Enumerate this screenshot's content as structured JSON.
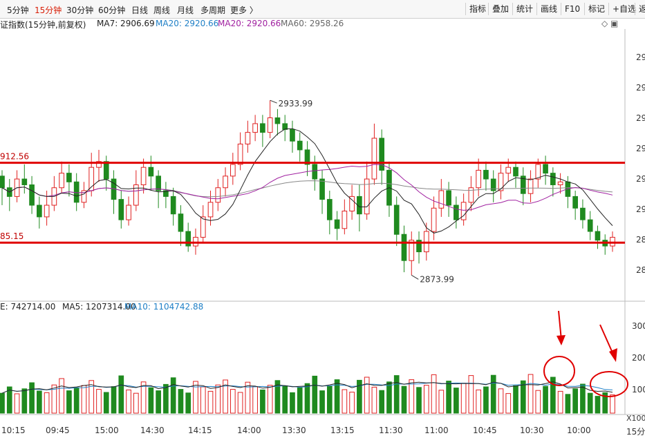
{
  "toolbar": {
    "periods": [
      "5分钟",
      "15分钟",
      "30分钟",
      "60分钟",
      "日线",
      "周线",
      "月线",
      "多周期",
      "更多 〉"
    ],
    "active_period": "15分钟",
    "right_buttons": [
      "指标",
      "叠加",
      "统计",
      "画线",
      "F10",
      "标记",
      "+自选",
      "返"
    ]
  },
  "info": {
    "title": "证指数(15分钟,前复权)",
    "ma7": "MA7: 2906.69",
    "ma20a": "MA20: 2920.66",
    "ma20b": "MA20: 2920.66",
    "ma60": "MA60: 2958.26",
    "corner_icons": "◇  ▣"
  },
  "price_axis": [
    "29",
    "29",
    "29",
    "29",
    "29",
    "29",
    "28",
    "28"
  ],
  "annotations": {
    "high": "2933.99",
    "low": "2873.99",
    "upper_line": "912.56",
    "lower_line": "85.15"
  },
  "volume_info": {
    "vol": "E: 742714.00",
    "ma5": "MA5: 1207314.00",
    "ma10": "MA10: 1104742.88"
  },
  "volume_axis": [
    "300",
    "200",
    "100",
    "X100"
  ],
  "time_axis": [
    "10:15",
    "09:45",
    "15:00",
    "14:30",
    "14:15",
    "14:00",
    "13:30",
    "13:15",
    "11:30",
    "11:00",
    "10:45",
    "10:30",
    "10:00"
  ],
  "corner_label": "15分",
  "colors": {
    "up": "#e02020",
    "down": "#1f8a1f",
    "ma7": "#222222",
    "ma20a": "#1e7fc6",
    "ma20b": "#a020a0",
    "ma60": "#888888",
    "hline": "#e00000"
  },
  "chart_data": {
    "type": "candlestick",
    "ylim": [
      2866,
      2958
    ],
    "high_label": 2933.99,
    "low_label": 2873.99,
    "hlines": [
      2912.56,
      2885.15
    ],
    "candles": [
      [
        2908,
        2904,
        2910,
        2898
      ],
      [
        2904,
        2901,
        2907,
        2896
      ],
      [
        2901,
        2907,
        2910,
        2899
      ],
      [
        2907,
        2905,
        2912,
        2902
      ],
      [
        2905,
        2898,
        2908,
        2895
      ],
      [
        2898,
        2894,
        2901,
        2890
      ],
      [
        2894,
        2898,
        2903,
        2891
      ],
      [
        2898,
        2904,
        2908,
        2896
      ],
      [
        2904,
        2909,
        2913,
        2902
      ],
      [
        2909,
        2906,
        2912,
        2901
      ],
      [
        2906,
        2899,
        2909,
        2896
      ],
      [
        2899,
        2903,
        2906,
        2897
      ],
      [
        2903,
        2911,
        2916,
        2901
      ],
      [
        2911,
        2913,
        2917,
        2906
      ],
      [
        2913,
        2907,
        2915,
        2903
      ],
      [
        2907,
        2900,
        2910,
        2895
      ],
      [
        2900,
        2893,
        2903,
        2890
      ],
      [
        2893,
        2898,
        2901,
        2891
      ],
      [
        2898,
        2905,
        2910,
        2896
      ],
      [
        2905,
        2911,
        2914,
        2902
      ],
      [
        2911,
        2908,
        2915,
        2903
      ],
      [
        2908,
        2903,
        2910,
        2897
      ],
      [
        2903,
        2901,
        2906,
        2897
      ],
      [
        2901,
        2895,
        2904,
        2891
      ],
      [
        2895,
        2889,
        2898,
        2884
      ],
      [
        2889,
        2884,
        2892,
        2882
      ],
      [
        2884,
        2887,
        2890,
        2881
      ],
      [
        2887,
        2894,
        2898,
        2885
      ],
      [
        2894,
        2899,
        2903,
        2891
      ],
      [
        2899,
        2904,
        2907,
        2896
      ],
      [
        2904,
        2908,
        2911,
        2901
      ],
      [
        2908,
        2912,
        2916,
        2905
      ],
      [
        2912,
        2919,
        2923,
        2910
      ],
      [
        2919,
        2923,
        2927,
        2916
      ],
      [
        2923,
        2926,
        2929,
        2920
      ],
      [
        2926,
        2923,
        2929,
        2918
      ],
      [
        2923,
        2928,
        2934,
        2921
      ],
      [
        2928,
        2926,
        2931,
        2922
      ],
      [
        2926,
        2924,
        2929,
        2920
      ],
      [
        2924,
        2920,
        2927,
        2916
      ],
      [
        2920,
        2917,
        2923,
        2913
      ],
      [
        2917,
        2912,
        2920,
        2908
      ],
      [
        2912,
        2907,
        2915,
        2903
      ],
      [
        2907,
        2900,
        2910,
        2895
      ],
      [
        2900,
        2893,
        2903,
        2888
      ],
      [
        2893,
        2890,
        2896,
        2886
      ],
      [
        2890,
        2896,
        2900,
        2888
      ],
      [
        2896,
        2901,
        2905,
        2893
      ],
      [
        2901,
        2895,
        2905,
        2889
      ],
      [
        2895,
        2907,
        2913,
        2893
      ],
      [
        2907,
        2921,
        2926,
        2905
      ],
      [
        2921,
        2910,
        2924,
        2905
      ],
      [
        2910,
        2898,
        2913,
        2894
      ],
      [
        2898,
        2888,
        2901,
        2884
      ],
      [
        2888,
        2879,
        2891,
        2875
      ],
      [
        2879,
        2886,
        2889,
        2874
      ],
      [
        2886,
        2882,
        2889,
        2878
      ],
      [
        2882,
        2889,
        2892,
        2879
      ],
      [
        2889,
        2897,
        2901,
        2886
      ],
      [
        2897,
        2903,
        2907,
        2894
      ],
      [
        2903,
        2898,
        2906,
        2894
      ],
      [
        2898,
        2893,
        2901,
        2890
      ],
      [
        2893,
        2899,
        2902,
        2891
      ],
      [
        2899,
        2904,
        2908,
        2896
      ],
      [
        2904,
        2910,
        2914,
        2901
      ],
      [
        2910,
        2907,
        2913,
        2903
      ],
      [
        2907,
        2903,
        2910,
        2899
      ],
      [
        2903,
        2909,
        2912,
        2900
      ],
      [
        2909,
        2911,
        2914,
        2906
      ],
      [
        2911,
        2908,
        2913,
        2904
      ],
      [
        2908,
        2902,
        2911,
        2898
      ],
      [
        2902,
        2907,
        2910,
        2899
      ],
      [
        2907,
        2912,
        2914,
        2904
      ],
      [
        2912,
        2909,
        2915,
        2905
      ],
      [
        2909,
        2905,
        2911,
        2901
      ],
      [
        2905,
        2906,
        2909,
        2902
      ],
      [
        2906,
        2901,
        2908,
        2897
      ],
      [
        2901,
        2897,
        2903,
        2893
      ],
      [
        2897,
        2893,
        2900,
        2890
      ],
      [
        2893,
        2889,
        2896,
        2886
      ],
      [
        2889,
        2886,
        2891,
        2883
      ],
      [
        2886,
        2884,
        2888,
        2881
      ],
      [
        2884,
        2887,
        2889,
        2882
      ]
    ],
    "volume_ylim": [
      0,
      360
    ],
    "volume_ticks": [
      100,
      200,
      300
    ],
    "volumes": [
      72,
      95,
      70,
      88,
      110,
      80,
      74,
      102,
      125,
      81,
      92,
      100,
      118,
      86,
      75,
      96,
      135,
      84,
      72,
      113,
      92,
      81,
      104,
      128,
      86,
      73,
      115,
      95,
      79,
      102,
      120,
      86,
      75,
      112,
      96,
      84,
      101,
      118,
      99,
      74,
      92,
      107,
      134,
      81,
      97,
      121,
      85,
      76,
      119,
      130,
      94,
      82,
      113,
      136,
      97,
      121,
      93,
      101,
      139,
      83,
      116,
      91,
      108,
      136,
      84,
      95,
      137,
      88,
      71,
      99,
      117,
      140,
      82,
      97,
      130,
      79,
      68,
      88,
      105,
      72,
      61,
      74,
      66
    ]
  }
}
